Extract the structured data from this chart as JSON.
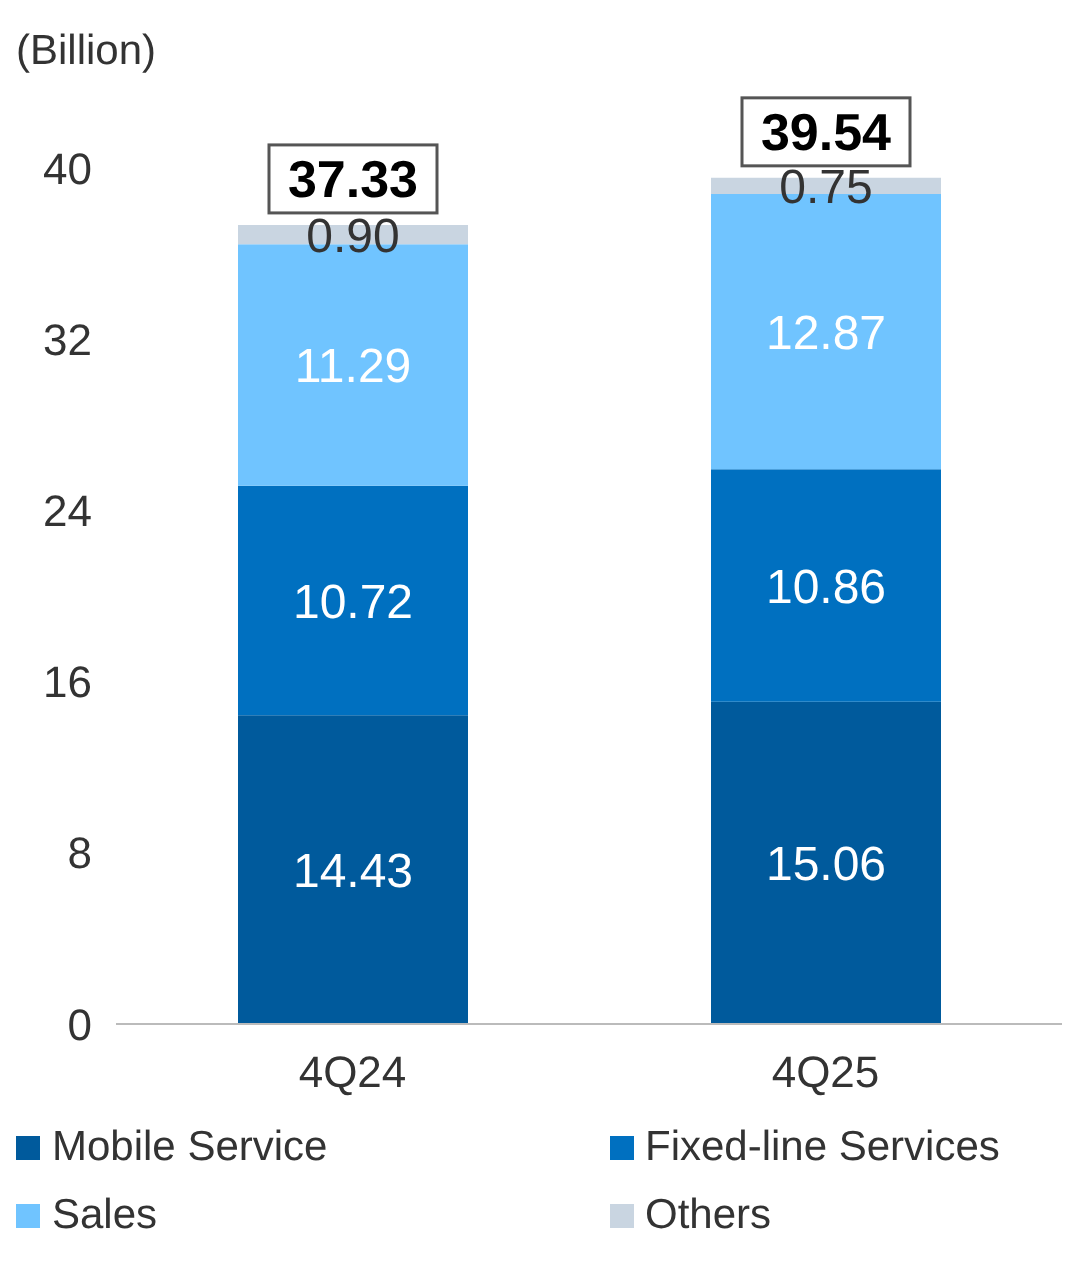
{
  "chart_data": {
    "type": "bar",
    "stacked": true,
    "ylabel": "(Billion)",
    "categories": [
      "4Q24",
      "4Q25"
    ],
    "series": [
      {
        "name": "Mobile Service",
        "color": "#005a9c",
        "values": [
          14.43,
          15.06
        ],
        "value_labels": [
          "14.43",
          "15.06"
        ]
      },
      {
        "name": "Fixed-line Services",
        "color": "#0070c0",
        "values": [
          10.72,
          10.86
        ],
        "value_labels": [
          "10.72",
          "10.86"
        ]
      },
      {
        "name": "Sales",
        "color": "#70c4ff",
        "values": [
          11.29,
          12.87
        ],
        "value_labels": [
          "11.29",
          "12.87"
        ]
      },
      {
        "name": "Others",
        "color": "#c9d5e1",
        "values": [
          0.9,
          0.75
        ],
        "value_labels": [
          "0.90",
          "0.75"
        ]
      }
    ],
    "ylim": [
      0,
      40
    ],
    "yticks": [
      0,
      8,
      16,
      24,
      32,
      40
    ],
    "totals": [
      "37.33",
      "39.54"
    ],
    "legend": "bottom"
  }
}
